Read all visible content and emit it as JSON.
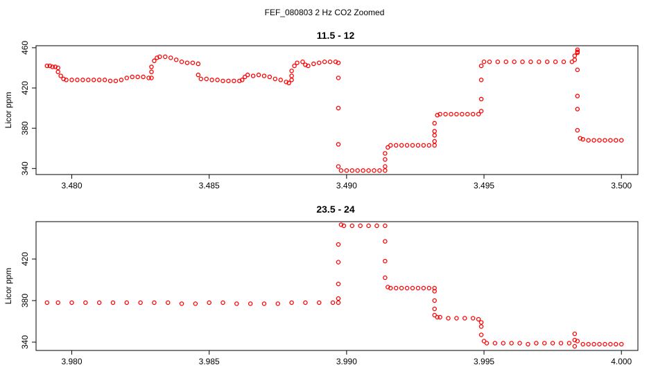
{
  "figure_title": "FEF_080803  2 Hz CO2 Zoomed",
  "point_color": "#ff0000",
  "chart_data": [
    {
      "type": "scatter",
      "title": "11.5 - 12",
      "ylabel": "Licor ppm",
      "xlabel": "",
      "xlim": [
        3.4787,
        3.5006
      ],
      "ylim": [
        334,
        462
      ],
      "x_ticks": [
        3.48,
        3.485,
        3.49,
        3.495,
        3.5
      ],
      "x_tick_labels": [
        "3.480",
        "3.485",
        "3.490",
        "3.495",
        "3.500"
      ],
      "y_ticks": [
        340,
        380,
        420,
        460
      ],
      "y_tick_labels": [
        "340",
        "380",
        "420",
        "460"
      ],
      "marker": "open-circle",
      "legend": "none",
      "grid": false,
      "series": [
        {
          "points": [
            [
              3.4791,
              442
            ],
            [
              3.4792,
              442
            ],
            [
              3.4793,
              441
            ],
            [
              3.4794,
              441
            ],
            [
              3.4795,
              440
            ],
            [
              3.4795,
              436
            ],
            [
              3.4796,
              432
            ],
            [
              3.4797,
              429
            ],
            [
              3.4798,
              428
            ],
            [
              3.48,
              428
            ],
            [
              3.4802,
              428
            ],
            [
              3.4804,
              428
            ],
            [
              3.4806,
              428
            ],
            [
              3.4808,
              428
            ],
            [
              3.481,
              428
            ],
            [
              3.4812,
              428
            ],
            [
              3.4814,
              427
            ],
            [
              3.4816,
              427
            ],
            [
              3.4818,
              428
            ],
            [
              3.482,
              430
            ],
            [
              3.4822,
              431
            ],
            [
              3.4824,
              431
            ],
            [
              3.4826,
              431
            ],
            [
              3.4828,
              430
            ],
            [
              3.4829,
              430
            ],
            [
              3.4829,
              436
            ],
            [
              3.4829,
              441
            ],
            [
              3.483,
              447
            ],
            [
              3.4831,
              450
            ],
            [
              3.4832,
              451
            ],
            [
              3.4834,
              451
            ],
            [
              3.4836,
              450
            ],
            [
              3.4838,
              448
            ],
            [
              3.484,
              446
            ],
            [
              3.4842,
              445
            ],
            [
              3.4844,
              445
            ],
            [
              3.4846,
              444
            ],
            [
              3.4846,
              433
            ],
            [
              3.4847,
              429
            ],
            [
              3.4849,
              429
            ],
            [
              3.4851,
              428
            ],
            [
              3.4853,
              428
            ],
            [
              3.4855,
              427
            ],
            [
              3.4857,
              427
            ],
            [
              3.4859,
              427
            ],
            [
              3.4861,
              427
            ],
            [
              3.4862,
              428
            ],
            [
              3.4863,
              431
            ],
            [
              3.4864,
              433
            ],
            [
              3.4866,
              432
            ],
            [
              3.4868,
              433
            ],
            [
              3.487,
              432
            ],
            [
              3.4872,
              431
            ],
            [
              3.4874,
              429
            ],
            [
              3.4876,
              428
            ],
            [
              3.4878,
              426
            ],
            [
              3.4879,
              425
            ],
            [
              3.488,
              428
            ],
            [
              3.488,
              432
            ],
            [
              3.488,
              437
            ],
            [
              3.4881,
              442
            ],
            [
              3.4882,
              445
            ],
            [
              3.4884,
              446
            ],
            [
              3.4885,
              443
            ],
            [
              3.4886,
              442
            ],
            [
              3.4888,
              444
            ],
            [
              3.489,
              445
            ],
            [
              3.4892,
              446
            ],
            [
              3.4894,
              446
            ],
            [
              3.4896,
              446
            ],
            [
              3.4897,
              445
            ],
            [
              3.4897,
              430
            ],
            [
              3.4897,
              400
            ],
            [
              3.4897,
              364
            ],
            [
              3.4897,
              342
            ],
            [
              3.4898,
              338
            ],
            [
              3.49,
              338
            ],
            [
              3.4902,
              338
            ],
            [
              3.4904,
              338
            ],
            [
              3.4906,
              338
            ],
            [
              3.4908,
              338
            ],
            [
              3.491,
              338
            ],
            [
              3.4912,
              338
            ],
            [
              3.4914,
              338
            ],
            [
              3.4914,
              342
            ],
            [
              3.4914,
              349
            ],
            [
              3.4914,
              355
            ],
            [
              3.4915,
              361
            ],
            [
              3.4916,
              363
            ],
            [
              3.4918,
              363
            ],
            [
              3.492,
              363
            ],
            [
              3.4922,
              363
            ],
            [
              3.4924,
              363
            ],
            [
              3.4926,
              363
            ],
            [
              3.4928,
              363
            ],
            [
              3.493,
              363
            ],
            [
              3.4932,
              363
            ],
            [
              3.4932,
              367
            ],
            [
              3.4932,
              373
            ],
            [
              3.4932,
              377
            ],
            [
              3.4932,
              385
            ],
            [
              3.4933,
              393
            ],
            [
              3.4934,
              394
            ],
            [
              3.4936,
              394
            ],
            [
              3.4938,
              394
            ],
            [
              3.494,
              394
            ],
            [
              3.4942,
              394
            ],
            [
              3.4944,
              394
            ],
            [
              3.4946,
              394
            ],
            [
              3.4948,
              394
            ],
            [
              3.4949,
              397
            ],
            [
              3.4949,
              409
            ],
            [
              3.4949,
              428
            ],
            [
              3.4949,
              442
            ],
            [
              3.495,
              446
            ],
            [
              3.4952,
              446
            ],
            [
              3.4955,
              446
            ],
            [
              3.4958,
              446
            ],
            [
              3.4961,
              446
            ],
            [
              3.4964,
              446
            ],
            [
              3.4967,
              446
            ],
            [
              3.497,
              446
            ],
            [
              3.4973,
              446
            ],
            [
              3.4976,
              446
            ],
            [
              3.4979,
              446
            ],
            [
              3.4982,
              446
            ],
            [
              3.4983,
              448
            ],
            [
              3.4983,
              452
            ],
            [
              3.4984,
              455
            ],
            [
              3.4984,
              458
            ],
            [
              3.4984,
              456
            ],
            [
              3.4984,
              438
            ],
            [
              3.4984,
              412
            ],
            [
              3.4984,
              399
            ],
            [
              3.4984,
              378
            ],
            [
              3.4985,
              370
            ],
            [
              3.4986,
              369
            ],
            [
              3.4988,
              368
            ],
            [
              3.499,
              368
            ],
            [
              3.4992,
              368
            ],
            [
              3.4994,
              368
            ],
            [
              3.4996,
              368
            ],
            [
              3.4998,
              368
            ],
            [
              3.5,
              368
            ]
          ]
        }
      ]
    },
    {
      "type": "scatter",
      "title": "23.5 - 24",
      "ylabel": "Licor ppm",
      "xlabel": "",
      "xlim": [
        3.9787,
        4.0006
      ],
      "ylim": [
        332,
        456
      ],
      "x_ticks": [
        3.98,
        3.985,
        3.99,
        3.995,
        4.0
      ],
      "x_tick_labels": [
        "3.980",
        "3.985",
        "3.990",
        "3.995",
        "4.000"
      ],
      "y_ticks": [
        340,
        380,
        420
      ],
      "y_tick_labels": [
        "340",
        "380",
        "420"
      ],
      "marker": "open-circle",
      "legend": "none",
      "grid": false,
      "series": [
        {
          "points": [
            [
              3.9791,
              378
            ],
            [
              3.9795,
              378
            ],
            [
              3.98,
              378
            ],
            [
              3.9805,
              378
            ],
            [
              3.981,
              378
            ],
            [
              3.9815,
              378
            ],
            [
              3.982,
              378
            ],
            [
              3.9825,
              378
            ],
            [
              3.983,
              378
            ],
            [
              3.9835,
              378
            ],
            [
              3.984,
              377
            ],
            [
              3.9845,
              377
            ],
            [
              3.985,
              378
            ],
            [
              3.9855,
              378
            ],
            [
              3.986,
              377
            ],
            [
              3.9865,
              377
            ],
            [
              3.987,
              377
            ],
            [
              3.9875,
              377
            ],
            [
              3.988,
              378
            ],
            [
              3.9885,
              378
            ],
            [
              3.989,
              378
            ],
            [
              3.9895,
              378
            ],
            [
              3.9897,
              378
            ],
            [
              3.9897,
              382
            ],
            [
              3.9897,
              396
            ],
            [
              3.9897,
              417
            ],
            [
              3.9897,
              434
            ],
            [
              3.9898,
              453
            ],
            [
              3.9899,
              452
            ],
            [
              3.9902,
              452
            ],
            [
              3.9905,
              452
            ],
            [
              3.9908,
              452
            ],
            [
              3.9911,
              452
            ],
            [
              3.9914,
              452
            ],
            [
              3.9914,
              437
            ],
            [
              3.9914,
              418
            ],
            [
              3.9914,
              402
            ],
            [
              3.9915,
              393
            ],
            [
              3.9916,
              392
            ],
            [
              3.9918,
              392
            ],
            [
              3.992,
              392
            ],
            [
              3.9922,
              392
            ],
            [
              3.9924,
              392
            ],
            [
              3.9926,
              392
            ],
            [
              3.9928,
              392
            ],
            [
              3.993,
              392
            ],
            [
              3.9932,
              392
            ],
            [
              3.9932,
              389
            ],
            [
              3.9932,
              380
            ],
            [
              3.9932,
              372
            ],
            [
              3.9932,
              366
            ],
            [
              3.9933,
              364
            ],
            [
              3.9934,
              364
            ],
            [
              3.9937,
              363
            ],
            [
              3.994,
              363
            ],
            [
              3.9943,
              363
            ],
            [
              3.9946,
              363
            ],
            [
              3.9948,
              362
            ],
            [
              3.9949,
              359
            ],
            [
              3.9949,
              355
            ],
            [
              3.9949,
              347
            ],
            [
              3.995,
              341
            ],
            [
              3.9951,
              339
            ],
            [
              3.9954,
              339
            ],
            [
              3.9957,
              339
            ],
            [
              3.996,
              339
            ],
            [
              3.9963,
              339
            ],
            [
              3.9966,
              338
            ],
            [
              3.9969,
              339
            ],
            [
              3.9972,
              339
            ],
            [
              3.9975,
              339
            ],
            [
              3.9978,
              339
            ],
            [
              3.9981,
              339
            ],
            [
              3.9983,
              342
            ],
            [
              3.9983,
              348
            ],
            [
              3.9983,
              336
            ],
            [
              3.9984,
              341
            ],
            [
              3.9986,
              338
            ],
            [
              3.9988,
              338
            ],
            [
              3.999,
              338
            ],
            [
              3.9992,
              338
            ],
            [
              3.9994,
              338
            ],
            [
              3.9996,
              338
            ],
            [
              3.9998,
              338
            ],
            [
              4.0,
              338
            ]
          ]
        }
      ]
    }
  ]
}
